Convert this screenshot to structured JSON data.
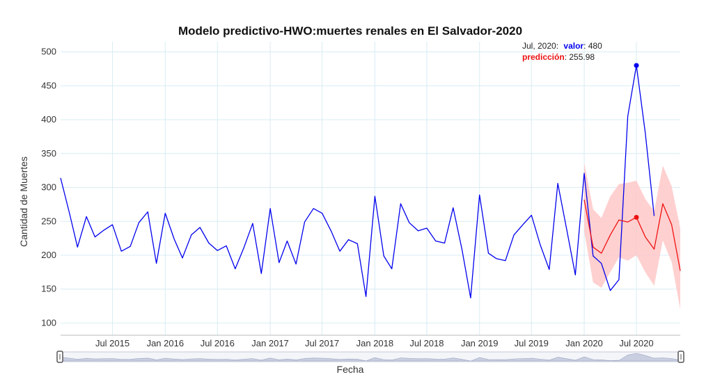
{
  "chart_data": {
    "type": "line",
    "title": "Modelo predictivo-HWO:muertes renales en El Salvador-2020",
    "xlabel": "Fecha",
    "ylabel": "Cantidad de Muertes",
    "ylim": [
      82,
      515
    ],
    "yticks": [
      100,
      150,
      200,
      250,
      300,
      350,
      400,
      450,
      500
    ],
    "xlim": [
      "2015-01-01",
      "2020-12-01"
    ],
    "xticks": [
      {
        "date": "2015-07-01",
        "label": "Jul 2015"
      },
      {
        "date": "2016-01-01",
        "label": "Jan 2016"
      },
      {
        "date": "2016-07-01",
        "label": "Jul 2016"
      },
      {
        "date": "2017-01-01",
        "label": "Jan 2017"
      },
      {
        "date": "2017-07-01",
        "label": "Jul 2017"
      },
      {
        "date": "2018-01-01",
        "label": "Jan 2018"
      },
      {
        "date": "2018-07-01",
        "label": "Jul 2018"
      },
      {
        "date": "2019-01-01",
        "label": "Jan 2019"
      },
      {
        "date": "2019-07-01",
        "label": "Jul 2019"
      },
      {
        "date": "2020-01-01",
        "label": "Jan 2020"
      },
      {
        "date": "2020-07-01",
        "label": "Jul 2020"
      }
    ],
    "grid": true,
    "series": [
      {
        "name": "valor",
        "color": "#0000ee",
        "dates": [
          "2015-01-01",
          "2015-02-01",
          "2015-03-01",
          "2015-04-01",
          "2015-05-01",
          "2015-06-01",
          "2015-07-01",
          "2015-08-01",
          "2015-09-01",
          "2015-10-01",
          "2015-11-01",
          "2015-12-01",
          "2016-01-01",
          "2016-02-01",
          "2016-03-01",
          "2016-04-01",
          "2016-05-01",
          "2016-06-01",
          "2016-07-01",
          "2016-08-01",
          "2016-09-01",
          "2016-10-01",
          "2016-11-01",
          "2016-12-01",
          "2017-01-01",
          "2017-02-01",
          "2017-03-01",
          "2017-04-01",
          "2017-05-01",
          "2017-06-01",
          "2017-07-01",
          "2017-08-01",
          "2017-09-01",
          "2017-10-01",
          "2017-11-01",
          "2017-12-01",
          "2018-01-01",
          "2018-02-01",
          "2018-03-01",
          "2018-04-01",
          "2018-05-01",
          "2018-06-01",
          "2018-07-01",
          "2018-08-01",
          "2018-09-01",
          "2018-10-01",
          "2018-11-01",
          "2018-12-01",
          "2019-01-01",
          "2019-02-01",
          "2019-03-01",
          "2019-04-01",
          "2019-05-01",
          "2019-06-01",
          "2019-07-01",
          "2019-08-01",
          "2019-09-01",
          "2019-10-01",
          "2019-11-01",
          "2019-12-01",
          "2020-01-01",
          "2020-02-01",
          "2020-03-01",
          "2020-04-01",
          "2020-05-01",
          "2020-06-01",
          "2020-07-01",
          "2020-08-01",
          "2020-09-01"
        ],
        "values": [
          314,
          262,
          212,
          257,
          227,
          237,
          245,
          206,
          213,
          248,
          264,
          188,
          262,
          224,
          196,
          230,
          241,
          218,
          207,
          214,
          180,
          211,
          247,
          173,
          269,
          189,
          221,
          187,
          249,
          269,
          262,
          236,
          206,
          223,
          217,
          139,
          287,
          199,
          180,
          276,
          248,
          236,
          240,
          221,
          218,
          270,
          208,
          137,
          289,
          203,
          195,
          192,
          230,
          245,
          259,
          215,
          179,
          306,
          238,
          171,
          321,
          199,
          188,
          148,
          164,
          405,
          480,
          380,
          258
        ]
      },
      {
        "name": "predicción",
        "color": "#ee1111",
        "dates": [
          "2020-01-01",
          "2020-02-01",
          "2020-03-01",
          "2020-04-01",
          "2020-05-01",
          "2020-06-01",
          "2020-07-01",
          "2020-08-01",
          "2020-09-01",
          "2020-10-01",
          "2020-11-01",
          "2020-12-01"
        ],
        "values": [
          282,
          212,
          203,
          230,
          252,
          249,
          255.98,
          227,
          209,
          276,
          245,
          177
        ],
        "lower": [
          235,
          160,
          152,
          175,
          197,
          192,
          200,
          175,
          155,
          222,
          190,
          120
        ],
        "upper": [
          337,
          268,
          255,
          287,
          305,
          307,
          310,
          283,
          265,
          332,
          302,
          240
        ]
      }
    ],
    "annotation": {
      "header": "Jul, 2020:",
      "valor_label": "valor",
      "valor_value": "480",
      "pred_label": "predicción",
      "pred_value": "255.98",
      "date": "2020-07-01"
    }
  },
  "range_selector": {
    "values": [
      314,
      262,
      212,
      257,
      227,
      237,
      245,
      206,
      213,
      248,
      264,
      188,
      262,
      224,
      196,
      230,
      241,
      218,
      207,
      214,
      180,
      211,
      247,
      173,
      269,
      189,
      221,
      187,
      249,
      269,
      262,
      236,
      206,
      223,
      217,
      139,
      287,
      199,
      180,
      276,
      248,
      236,
      240,
      221,
      218,
      270,
      208,
      137,
      289,
      203,
      195,
      192,
      230,
      245,
      259,
      215,
      179,
      306,
      238,
      171,
      321,
      199,
      188,
      148,
      164,
      405,
      480,
      380,
      258,
      276,
      245,
      177
    ]
  },
  "colors": {
    "grid": "#d8ecf4",
    "band": "#ffc8c8",
    "selector_fill": "#c9cfe0",
    "selector_stroke": "#9aa4c0"
  }
}
